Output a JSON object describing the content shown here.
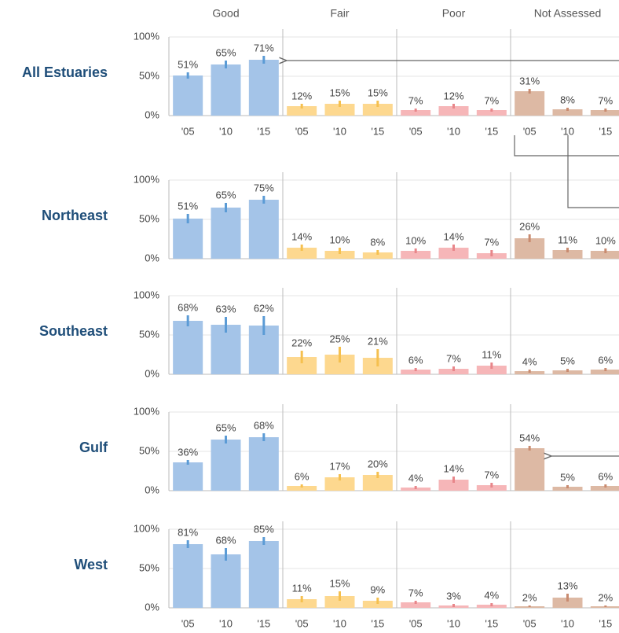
{
  "chart_data": {
    "type": "bar",
    "columns": [
      {
        "name": "Good",
        "color": "#a4c4e8",
        "error_color": "#5b9bd5"
      },
      {
        "name": "Fair",
        "color": "#fdd88f",
        "error_color": "#f5c04f"
      },
      {
        "name": "Poor",
        "color": "#f6b6b8",
        "error_color": "#e8868a"
      },
      {
        "name": "Not Assessed",
        "color": "#ddb9a4",
        "error_color": "#c98b70"
      }
    ],
    "years": [
      "'05",
      "'10",
      "'15"
    ],
    "ylim": [
      0,
      100
    ],
    "yticks": [
      {
        "value": 0,
        "label": "0%"
      },
      {
        "value": 50,
        "label": "50%"
      },
      {
        "value": 100,
        "label": "100%"
      }
    ],
    "grid": true,
    "rows": [
      {
        "name": "All Estuaries",
        "values": [
          [
            51,
            65,
            71
          ],
          [
            12,
            15,
            15
          ],
          [
            7,
            12,
            7
          ],
          [
            31,
            8,
            7
          ]
        ],
        "value_labels": [
          [
            "51%",
            "65%",
            "71%"
          ],
          [
            "12%",
            "15%",
            "15%"
          ],
          [
            "7%",
            "12%",
            "7%"
          ],
          [
            "31%",
            "8%",
            "7%"
          ]
        ],
        "errors": [
          [
            4,
            5,
            5
          ],
          [
            3,
            4,
            4
          ],
          [
            2,
            3,
            2
          ],
          [
            3,
            2,
            2
          ]
        ]
      },
      {
        "name": "Northeast",
        "values": [
          [
            51,
            65,
            75
          ],
          [
            14,
            10,
            8
          ],
          [
            10,
            14,
            7
          ],
          [
            26,
            11,
            10
          ]
        ],
        "value_labels": [
          [
            "51%",
            "65%",
            "75%"
          ],
          [
            "14%",
            "10%",
            "8%"
          ],
          [
            "10%",
            "14%",
            "7%"
          ],
          [
            "26%",
            "11%",
            "10%"
          ]
        ],
        "errors": [
          [
            6,
            6,
            5
          ],
          [
            4,
            4,
            3
          ],
          [
            3,
            4,
            4
          ],
          [
            5,
            3,
            3
          ]
        ]
      },
      {
        "name": "Southeast",
        "values": [
          [
            68,
            63,
            62
          ],
          [
            22,
            25,
            21
          ],
          [
            6,
            7,
            11
          ],
          [
            4,
            5,
            6
          ]
        ],
        "value_labels": [
          [
            "68%",
            "63%",
            "62%"
          ],
          [
            "22%",
            "25%",
            "21%"
          ],
          [
            "6%",
            "7%",
            "11%"
          ],
          [
            "4%",
            "5%",
            "6%"
          ]
        ],
        "errors": [
          [
            7,
            10,
            12
          ],
          [
            8,
            10,
            11
          ],
          [
            2,
            3,
            4
          ],
          [
            2,
            2,
            2
          ]
        ]
      },
      {
        "name": "Gulf",
        "values": [
          [
            36,
            65,
            68
          ],
          [
            6,
            17,
            20
          ],
          [
            4,
            14,
            7
          ],
          [
            54,
            5,
            6
          ]
        ],
        "value_labels": [
          [
            "36%",
            "65%",
            "68%"
          ],
          [
            "6%",
            "17%",
            "20%"
          ],
          [
            "4%",
            "14%",
            "7%"
          ],
          [
            "54%",
            "5%",
            "6%"
          ]
        ],
        "errors": [
          [
            3,
            5,
            5
          ],
          [
            2,
            4,
            4
          ],
          [
            2,
            4,
            3
          ],
          [
            3,
            2,
            2
          ]
        ]
      },
      {
        "name": "West",
        "values": [
          [
            81,
            68,
            85
          ],
          [
            11,
            15,
            9
          ],
          [
            7,
            3,
            4
          ],
          [
            2,
            13,
            2
          ]
        ],
        "value_labels": [
          [
            "81%",
            "68%",
            "85%"
          ],
          [
            "11%",
            "15%",
            "9%"
          ],
          [
            "7%",
            "3%",
            "4%"
          ],
          [
            "2%",
            "13%",
            "2%"
          ]
        ],
        "errors": [
          [
            5,
            8,
            5
          ],
          [
            4,
            6,
            4
          ],
          [
            2,
            2,
            2
          ],
          [
            1,
            5,
            1
          ]
        ]
      }
    ]
  }
}
